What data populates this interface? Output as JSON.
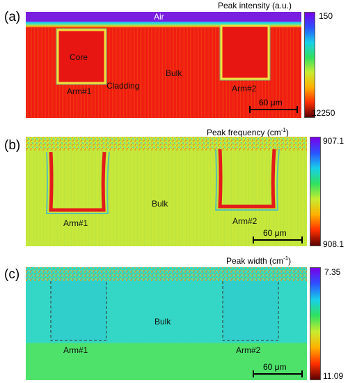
{
  "panels": [
    {
      "letter": "(a)",
      "title": "Peak intensity (a.u.)",
      "colorbar": {
        "top": "150",
        "bottom": "12250"
      },
      "labels": {
        "air": "Air",
        "core": "Core",
        "cladding": "Cladding",
        "bulk": "Bulk",
        "arm1": "Arm#1",
        "arm2": "Arm#2"
      },
      "scale": "60 μm"
    },
    {
      "letter": "(b)",
      "title_main": "Peak frequency (cm",
      "title_sup": "-1",
      "title_end": ")",
      "colorbar": {
        "top": "907.1",
        "bottom": "908.1"
      },
      "labels": {
        "bulk": "Bulk",
        "arm1": "Arm#1",
        "arm2": "Arm#2"
      },
      "scale": "60 μm"
    },
    {
      "letter": "(c)",
      "title_main": "Peak width (cm",
      "title_sup": "-1",
      "title_end": ")",
      "colorbar": {
        "top": "7.35",
        "bottom": "11.09"
      },
      "labels": {
        "bulk": "Bulk",
        "arm1": "Arm#1",
        "arm2": "Arm#2"
      },
      "scale": "60 μm"
    }
  ],
  "colors": {
    "air": "#7a1fe0",
    "bulk_intensity": "#ef1a10",
    "bulk_frequency": "#c7e83a",
    "bulk_width_top": "#34d7c6",
    "bulk_width_bottom": "#4ee26a",
    "colorbar_rainbow": [
      "#7a00e8",
      "#2a52ff",
      "#18d0e8",
      "#30e060",
      "#c8ec30",
      "#ffb000",
      "#ff3000",
      "#5a0000"
    ]
  }
}
